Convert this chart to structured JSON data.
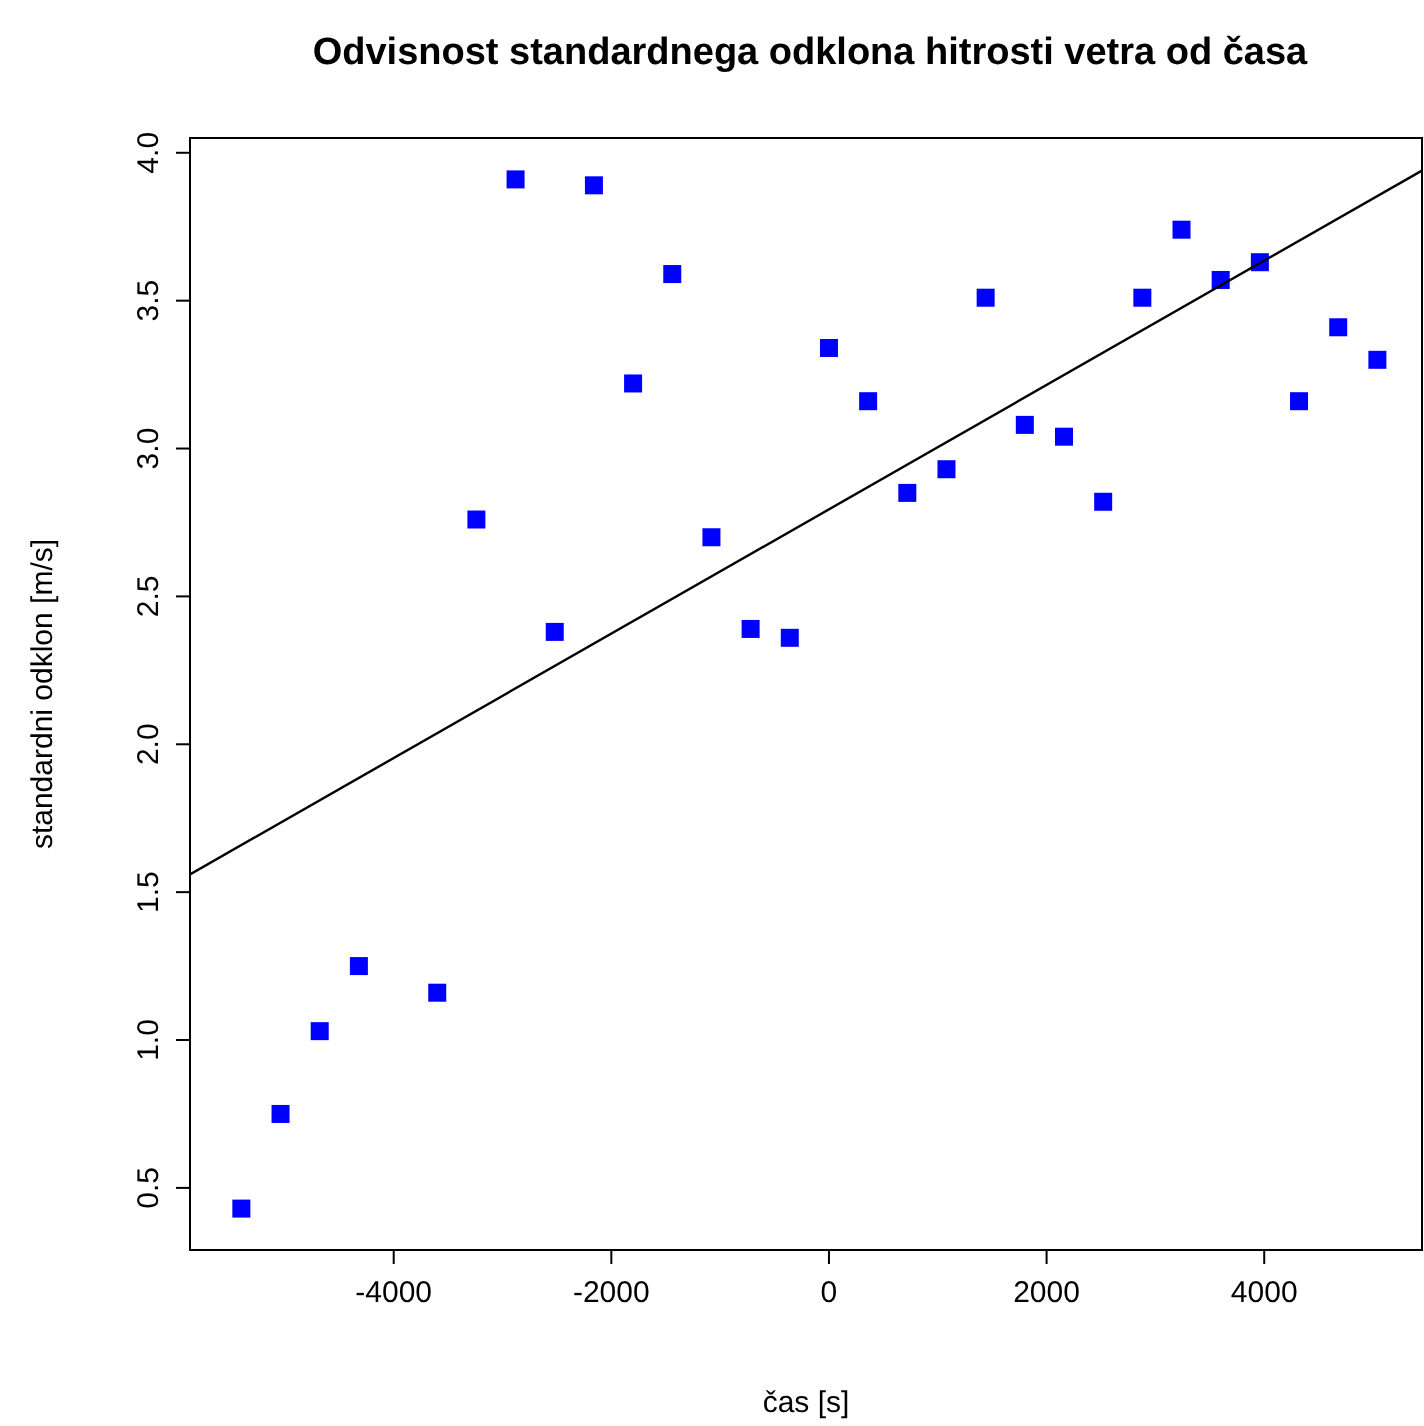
{
  "chart_data": {
    "type": "scatter",
    "title": "Odvisnost standardnega odklona hitrosti vetra od časa",
    "xlabel": "čas [s]",
    "ylabel": "standardni odklon [m/s]",
    "xlim": [
      -5872,
      5450
    ],
    "ylim": [
      0.29,
      4.05
    ],
    "xticks": [
      -4000,
      -2000,
      0,
      2000,
      4000
    ],
    "yticks": [
      0.5,
      {
        "value": 1,
        "label": "1.0"
      },
      1.5,
      {
        "value": 2,
        "label": "2.0"
      },
      2.5,
      {
        "value": 3,
        "label": "3.0"
      },
      3.5,
      {
        "value": 4,
        "label": "4.0"
      }
    ],
    "grid": false,
    "marker": "square",
    "series": [
      {
        "type": "scatter",
        "color": "#0000ff",
        "x": [
          -5400,
          -5040,
          -4680,
          -4320,
          -3600,
          -3240,
          -2880,
          -2520,
          -2160,
          -1800,
          -1440,
          -1080,
          -720,
          -360,
          0,
          360,
          720,
          1080,
          1440,
          1800,
          2160,
          2520,
          2880,
          3240,
          3600,
          3960,
          4320,
          4680,
          5040
        ],
        "values": [
          0.43,
          0.75,
          1.03,
          1.25,
          1.16,
          2.76,
          3.91,
          2.38,
          3.89,
          3.22,
          3.59,
          2.7,
          2.39,
          2.36,
          3.34,
          3.16,
          2.85,
          2.93,
          3.51,
          3.08,
          3.04,
          2.82,
          3.51,
          3.74,
          3.57,
          3.63,
          3.16,
          3.41,
          3.3
        ]
      },
      {
        "type": "line",
        "color": "#000000",
        "x": [
          -5872,
          5450
        ],
        "values": [
          1.56,
          3.94
        ],
        "marker": "none"
      }
    ]
  }
}
